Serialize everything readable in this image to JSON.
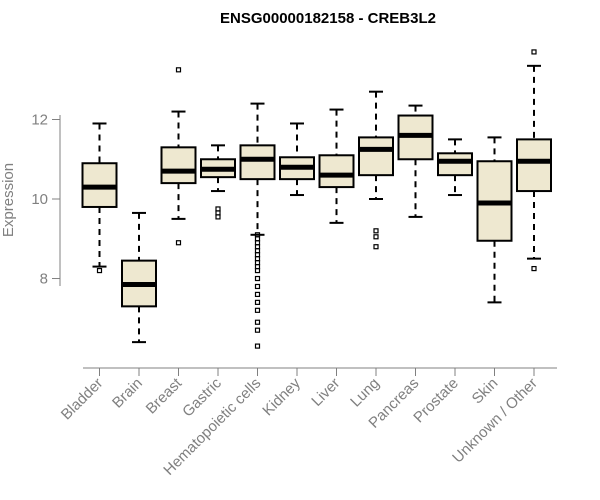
{
  "chart_data": {
    "type": "boxplot",
    "title": "ENSG00000182158 - CREB3L2",
    "xlabel": "",
    "ylabel": "Expression",
    "ylim": [
      5.9,
      14.0
    ],
    "yticks": [
      8,
      10,
      12
    ],
    "box_fill": "#EEE8D0",
    "box_stroke": "#000000",
    "categories": [
      "Bladder",
      "Brain",
      "Breast",
      "Gastric",
      "Hematopoietic cells",
      "Kidney",
      "Liver",
      "Lung",
      "Pancreas",
      "Prostate",
      "Skin",
      "Unknown / Other"
    ],
    "boxes": [
      {
        "name": "Bladder",
        "whisker_low": 8.3,
        "q1": 9.8,
        "median": 10.3,
        "q3": 10.9,
        "whisker_high": 11.9,
        "outliers": [
          8.2
        ]
      },
      {
        "name": "Brain",
        "whisker_low": 6.4,
        "q1": 7.3,
        "median": 7.85,
        "q3": 8.45,
        "whisker_high": 9.65,
        "outliers": []
      },
      {
        "name": "Breast",
        "whisker_low": 9.5,
        "q1": 10.4,
        "median": 10.7,
        "q3": 11.3,
        "whisker_high": 12.2,
        "outliers": [
          13.25,
          8.9
        ]
      },
      {
        "name": "Gastric",
        "whisker_low": 10.2,
        "q1": 10.55,
        "median": 10.75,
        "q3": 11.0,
        "whisker_high": 11.35,
        "outliers": [
          9.75,
          9.65,
          9.55
        ]
      },
      {
        "name": "Hematopoietic cells",
        "whisker_low": 9.1,
        "q1": 10.5,
        "median": 11.0,
        "q3": 11.35,
        "whisker_high": 12.4,
        "outliers": [
          9.1,
          9.0,
          8.9,
          8.8,
          8.7,
          8.6,
          8.5,
          8.4,
          8.3,
          8.2,
          8.0,
          7.8,
          7.6,
          7.4,
          7.2,
          6.9,
          6.7,
          6.3
        ]
      },
      {
        "name": "Kidney",
        "whisker_low": 10.1,
        "q1": 10.5,
        "median": 10.8,
        "q3": 11.05,
        "whisker_high": 11.9,
        "outliers": []
      },
      {
        "name": "Liver",
        "whisker_low": 9.4,
        "q1": 10.3,
        "median": 10.6,
        "q3": 11.1,
        "whisker_high": 12.25,
        "outliers": []
      },
      {
        "name": "Lung",
        "whisker_low": 10.0,
        "q1": 10.6,
        "median": 11.25,
        "q3": 11.55,
        "whisker_high": 12.7,
        "outliers": [
          9.2,
          9.05,
          8.8
        ]
      },
      {
        "name": "Pancreas",
        "whisker_low": 9.55,
        "q1": 11.0,
        "median": 11.6,
        "q3": 12.1,
        "whisker_high": 12.35,
        "outliers": []
      },
      {
        "name": "Prostate",
        "whisker_low": 10.1,
        "q1": 10.6,
        "median": 10.95,
        "q3": 11.15,
        "whisker_high": 11.5,
        "outliers": []
      },
      {
        "name": "Skin",
        "whisker_low": 7.4,
        "q1": 8.95,
        "median": 9.9,
        "q3": 10.95,
        "whisker_high": 11.55,
        "outliers": []
      },
      {
        "name": "Unknown / Other",
        "whisker_low": 8.5,
        "q1": 10.2,
        "median": 10.95,
        "q3": 11.5,
        "whisker_high": 13.35,
        "outliers": [
          13.7,
          8.25
        ]
      }
    ]
  }
}
